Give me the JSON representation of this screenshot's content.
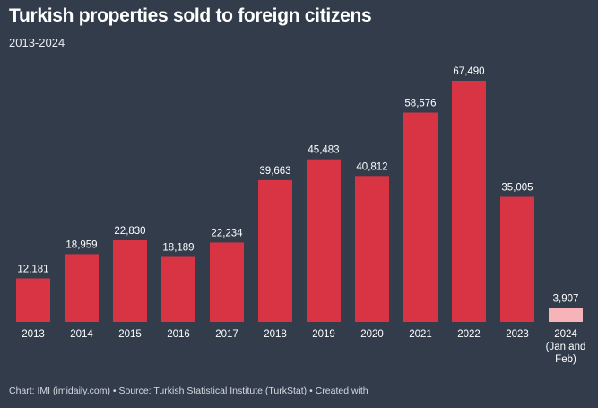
{
  "header": {
    "title": "Turkish properties sold to foreign citizens",
    "subtitle": "2013-2024"
  },
  "footer": {
    "credit": "Chart: IMI (imidaily.com) • Source: Turkish Statistical Institute (TurkStat) • Created with"
  },
  "colors": {
    "background": "#323c4b",
    "bar": "#d93444",
    "bar_partial": "#f7b4b8",
    "text": "#ffffff"
  },
  "chart_data": {
    "type": "bar",
    "title": "Turkish properties sold to foreign citizens",
    "subtitle": "2013-2024",
    "categories": [
      "2013",
      "2014",
      "2015",
      "2016",
      "2017",
      "2018",
      "2019",
      "2020",
      "2021",
      "2022",
      "2023",
      "2024 (Jan and Feb)"
    ],
    "category_lines": [
      [
        "2013"
      ],
      [
        "2014"
      ],
      [
        "2015"
      ],
      [
        "2016"
      ],
      [
        "2017"
      ],
      [
        "2018"
      ],
      [
        "2019"
      ],
      [
        "2020"
      ],
      [
        "2021"
      ],
      [
        "2022"
      ],
      [
        "2023"
      ],
      [
        "2024",
        "(Jan and",
        "Feb)"
      ]
    ],
    "values": [
      12181,
      18959,
      22830,
      18189,
      22234,
      39663,
      45483,
      40812,
      58576,
      67490,
      35005,
      3907
    ],
    "labels": [
      "12,181",
      "18,959",
      "22,830",
      "18,189",
      "22,234",
      "39,663",
      "45,483",
      "40,812",
      "58,576",
      "67,490",
      "35,005",
      "3,907"
    ],
    "highlight": [
      false,
      false,
      false,
      false,
      false,
      false,
      false,
      false,
      false,
      false,
      false,
      true
    ],
    "xlabel": "",
    "ylabel": "",
    "ylim": [
      0,
      70000
    ],
    "grid": false,
    "legend": "none"
  }
}
